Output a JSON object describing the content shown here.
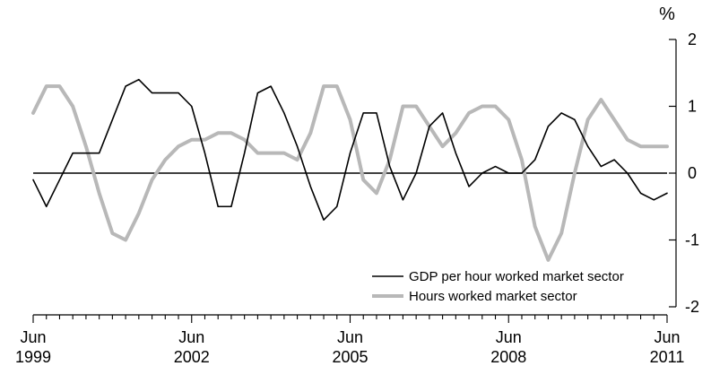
{
  "chart_data": {
    "type": "line",
    "title": "%",
    "y_unit_label": "%",
    "ylim": [
      -2,
      2
    ],
    "yticks": [
      2,
      1,
      0,
      -1,
      -2
    ],
    "xlim_quarters": [
      "1999-Q2",
      "2011-Q2"
    ],
    "xtick_labels": [
      {
        "month": "Jun",
        "year": "1999"
      },
      {
        "month": "Jun",
        "year": "2002"
      },
      {
        "month": "Jun",
        "year": "2005"
      },
      {
        "month": "Jun",
        "year": "2008"
      },
      {
        "month": "Jun",
        "year": "2011"
      }
    ],
    "grid": false,
    "legend_position": "bottom-right",
    "x": [
      "1999-Q2",
      "1999-Q3",
      "1999-Q4",
      "2000-Q1",
      "2000-Q2",
      "2000-Q3",
      "2000-Q4",
      "2001-Q1",
      "2001-Q2",
      "2001-Q3",
      "2001-Q4",
      "2002-Q1",
      "2002-Q2",
      "2002-Q3",
      "2002-Q4",
      "2003-Q1",
      "2003-Q2",
      "2003-Q3",
      "2003-Q4",
      "2004-Q1",
      "2004-Q2",
      "2004-Q3",
      "2004-Q4",
      "2005-Q1",
      "2005-Q2",
      "2005-Q3",
      "2005-Q4",
      "2006-Q1",
      "2006-Q2",
      "2006-Q3",
      "2006-Q4",
      "2007-Q1",
      "2007-Q2",
      "2007-Q3",
      "2007-Q4",
      "2008-Q1",
      "2008-Q2",
      "2008-Q3",
      "2008-Q4",
      "2009-Q1",
      "2009-Q2",
      "2009-Q3",
      "2009-Q4",
      "2010-Q1",
      "2010-Q2",
      "2010-Q3",
      "2010-Q4",
      "2011-Q1",
      "2011-Q2"
    ],
    "series": [
      {
        "name": "GDP per hour worked market sector",
        "color": "#000000",
        "values": [
          -0.1,
          -0.5,
          -0.1,
          0.3,
          0.3,
          0.3,
          0.8,
          1.3,
          1.4,
          1.2,
          1.2,
          1.2,
          1.0,
          0.3,
          -0.5,
          -0.5,
          0.3,
          1.2,
          1.3,
          0.9,
          0.4,
          -0.2,
          -0.7,
          -0.5,
          0.3,
          0.9,
          0.9,
          0.1,
          -0.4,
          0.0,
          0.7,
          0.9,
          0.3,
          -0.2,
          0.0,
          0.1,
          0.0,
          0.0,
          0.2,
          0.7,
          0.9,
          0.8,
          0.4,
          0.1,
          0.2,
          0.0,
          -0.3,
          -0.4,
          -0.3
        ]
      },
      {
        "name": "Hours worked market sector",
        "color": "#b8b8b8",
        "values": [
          0.9,
          1.3,
          1.3,
          1.0,
          0.4,
          -0.3,
          -0.9,
          -1.0,
          -0.6,
          -0.1,
          0.2,
          0.4,
          0.5,
          0.5,
          0.6,
          0.6,
          0.5,
          0.3,
          0.3,
          0.3,
          0.2,
          0.6,
          1.3,
          1.3,
          0.8,
          -0.1,
          -0.3,
          0.2,
          1.0,
          1.0,
          0.7,
          0.4,
          0.6,
          0.9,
          1.0,
          1.0,
          0.8,
          0.2,
          -0.8,
          -1.3,
          -0.9,
          0.0,
          0.8,
          1.1,
          0.8,
          0.5,
          0.4,
          0.4,
          0.4
        ]
      }
    ]
  }
}
